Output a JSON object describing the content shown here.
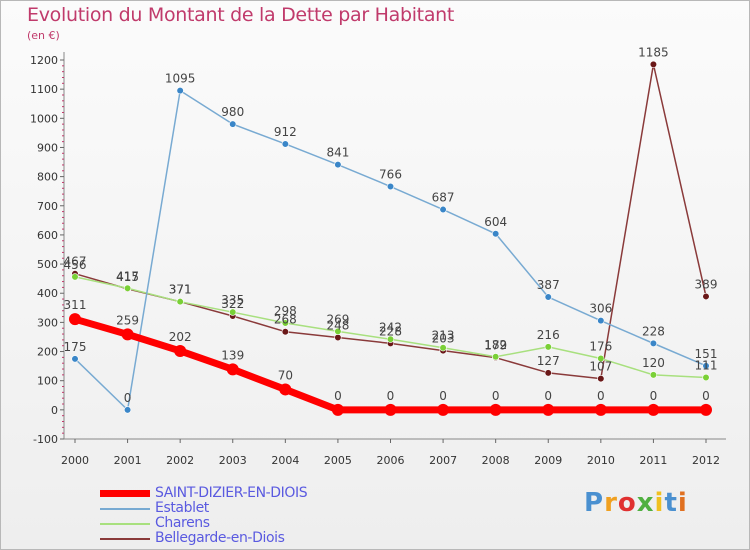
{
  "chart_data": {
    "type": "line",
    "title": "Evolution du Montant de la Dette par Habitant",
    "subtitle": "(en €)",
    "xlabel": "",
    "ylabel": "",
    "categories": [
      "2000",
      "2001",
      "2002",
      "2003",
      "2004",
      "2005",
      "2006",
      "2007",
      "2008",
      "2009",
      "2010",
      "2011",
      "2012"
    ],
    "ylim": [
      -100,
      1200
    ],
    "yticks": [
      "-100",
      "0",
      "100",
      "200",
      "300",
      "400",
      "500",
      "600",
      "700",
      "800",
      "900",
      "1000",
      "1100",
      "1200"
    ],
    "grid": false,
    "legend_position": "bottom-left",
    "series": [
      {
        "name": "SAINT-DIZIER-EN-DIOIS",
        "color": "#ff0000",
        "point_color": "#ff0000",
        "values": [
          311,
          259,
          202,
          139,
          70,
          0,
          0,
          0,
          0,
          0,
          0,
          0,
          0
        ],
        "labels": [
          "311",
          "259",
          "202",
          "139",
          "70",
          "0",
          "0",
          "0",
          "0",
          "0",
          "0",
          "0",
          "0"
        ]
      },
      {
        "name": "Establet",
        "color": "#78aad2",
        "point_color": "#3a86c8",
        "values": [
          175,
          0,
          1095,
          980,
          912,
          841,
          766,
          687,
          604,
          387,
          306,
          228,
          151
        ],
        "labels": [
          "175",
          "0",
          "1095",
          "980",
          "912",
          "841",
          "766",
          "687",
          "604",
          "387",
          "306",
          "228",
          "151"
        ]
      },
      {
        "name": "Charens",
        "color": "#a8e07e",
        "point_color": "#7ad036",
        "values": [
          456,
          417,
          371,
          335,
          298,
          269,
          242,
          213,
          182,
          216,
          176,
          120,
          111
        ],
        "labels": [
          "456",
          "417",
          "371",
          "335",
          "298",
          "269",
          "242",
          "213",
          "182",
          "216",
          "176",
          "120",
          "111"
        ]
      },
      {
        "name": "Bellegarde-en-Diois",
        "color": "#8a3a3a",
        "point_color": "#6a1818",
        "values": [
          467,
          415,
          371,
          322,
          268,
          248,
          228,
          203,
          179,
          127,
          107,
          1185,
          389
        ],
        "labels": [
          "467",
          "415",
          "371",
          "322",
          "268",
          "248",
          "228",
          "203",
          "179",
          "127",
          "107",
          "1185",
          "389"
        ]
      }
    ]
  },
  "logo": {
    "text": "Proxiti",
    "letters": [
      "P",
      "r",
      "o",
      "x",
      "i",
      "t",
      "i"
    ],
    "colors": [
      "#4a90d0",
      "#f0a020",
      "#e03030",
      "#50b040",
      "#f0c020",
      "#4a90d0",
      "#e07020"
    ]
  }
}
